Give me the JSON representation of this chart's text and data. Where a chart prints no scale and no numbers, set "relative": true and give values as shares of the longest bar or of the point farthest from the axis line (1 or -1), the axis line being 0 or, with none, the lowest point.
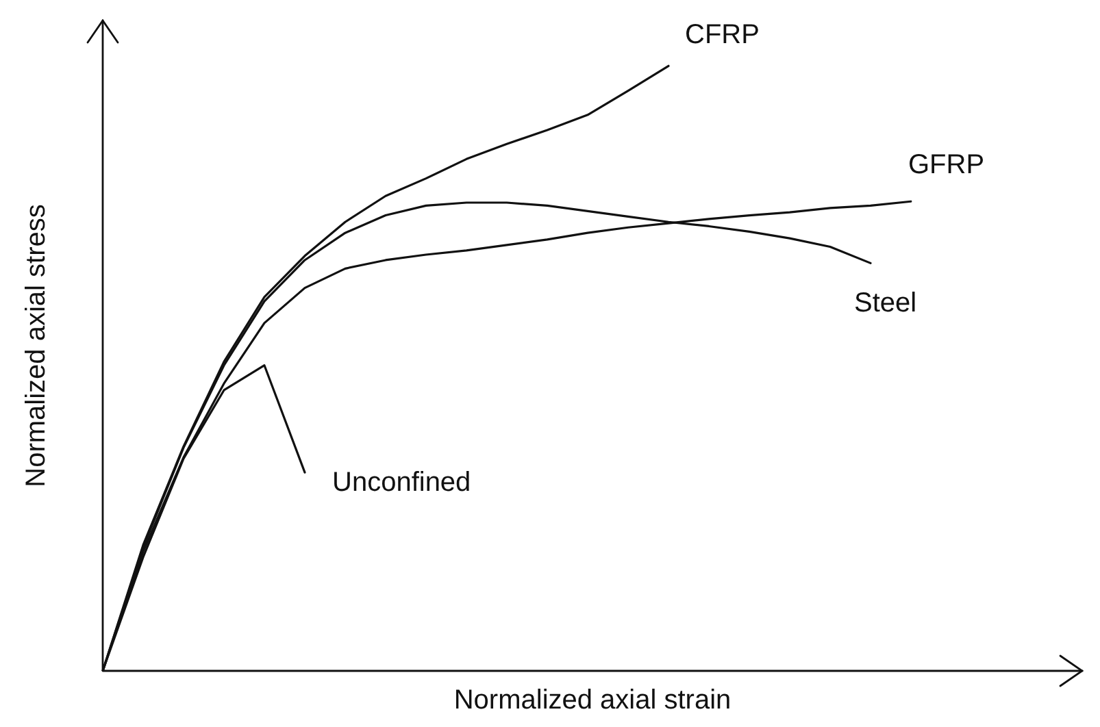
{
  "chart_data": {
    "type": "line",
    "relative": true,
    "xlabel": "Normalized axial strain",
    "ylabel": "Normalized axial stress",
    "legend": false,
    "marker": "none",
    "line_style": "solid",
    "categories": [
      null,
      null,
      null,
      null,
      null,
      null,
      null,
      null,
      null,
      null,
      null,
      null,
      null,
      null,
      null,
      null,
      null,
      null,
      null,
      null,
      null
    ],
    "series": [
      {
        "name": "CFRP",
        "color": "#111111",
        "values": [
          0,
          0.208,
          0.371,
          0.511,
          0.618,
          0.686,
          0.742,
          0.785,
          0.814,
          0.846,
          0.871,
          0.894,
          0.919,
          0.959,
          1,
          null,
          null,
          null,
          null,
          null,
          null
        ]
      },
      {
        "name": "GFRP",
        "color": "#111111",
        "values": [
          0,
          0.197,
          0.353,
          0.475,
          0.575,
          0.633,
          0.665,
          0.679,
          0.688,
          0.695,
          0.704,
          0.713,
          0.724,
          0.733,
          0.74,
          0.747,
          0.753,
          0.758,
          0.765,
          0.769,
          0.776
        ]
      },
      {
        "name": "Steel",
        "color": "#111111",
        "values": [
          0,
          0.204,
          0.369,
          0.505,
          0.611,
          0.679,
          0.724,
          0.753,
          0.769,
          0.774,
          0.774,
          0.769,
          0.76,
          0.751,
          0.742,
          0.735,
          0.726,
          0.715,
          0.701,
          0.674,
          null
        ]
      },
      {
        "name": "Unconfined",
        "color": "#111111",
        "values": [
          0,
          0.188,
          0.351,
          0.464,
          0.505,
          0.328,
          null,
          null,
          null,
          null,
          null,
          null,
          null,
          null,
          null,
          null,
          null,
          null,
          null,
          null,
          null
        ]
      }
    ]
  }
}
